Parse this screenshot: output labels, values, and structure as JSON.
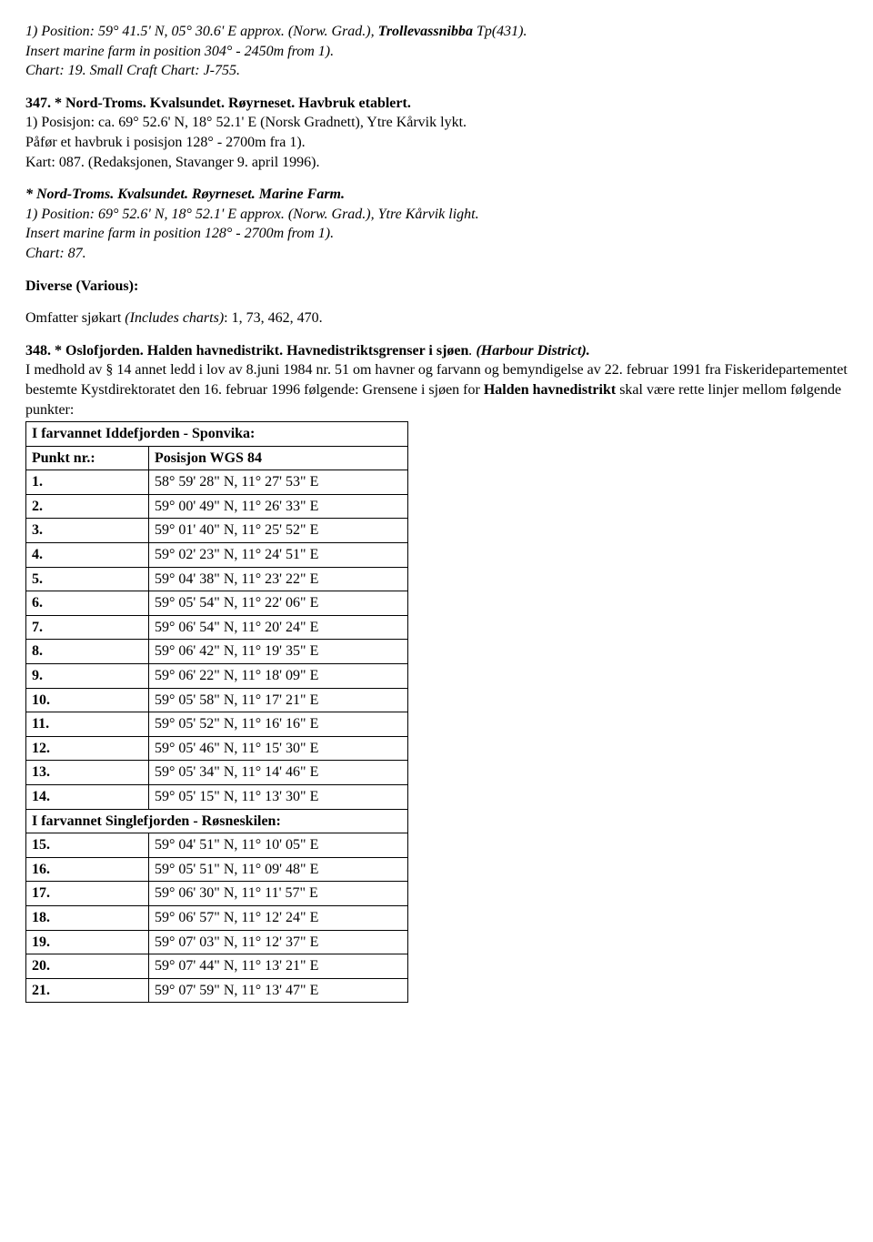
{
  "p1_a": "1) Position: 59° 41.5' N, 05° 30.6' E approx. (Norw. Grad.), ",
  "p1_b": "Trollevassnibba",
  "p1_c": " Tp(431).",
  "p1_d": "Insert marine farm in position 304° - 2450m from 1).",
  "p1_e": "Chart: 19. Small Craft Chart: J-755.",
  "p2_title": "347. * Nord-Troms. Kvalsundet. Røyrneset. Havbruk etablert.",
  "p2_a": "1) Posisjon: ca. 69° 52.6' N, 18° 52.1' E (Norsk Gradnett), Ytre Kårvik lykt.",
  "p2_b": "Påfør et havbruk i posisjon 128° - 2700m fra 1).",
  "p2_c": "Kart: 087. (Redaksjonen, Stavanger 9. april 1996).",
  "p3_title": "* Nord-Troms. Kvalsundet. Røyrneset. Marine Farm.",
  "p3_a": "1) Position: 69° 52.6' N, 18° 52.1' E approx. (Norw. Grad.), Ytre Kårvik light.",
  "p3_b": "Insert marine farm in position 128° - 2700m from 1).",
  "p3_c": "Chart: 87.",
  "diverse_title": "Diverse (Various):",
  "diverse_a": "Omfatter sjøkart ",
  "diverse_b": "(Includes charts)",
  "diverse_c": ": 1, 73, 462, 470.",
  "p4_a": "348. * Oslofjorden. Halden havnedistrikt. Havnedistriktsgrenser i sjøen",
  "p4_b": ". ",
  "p4_c": "(Harbour District).",
  "p4_d": "I medhold av § 14 annet ledd i lov av 8.juni 1984 nr. 51 om havner og farvann og bemyndigelse av 22. februar 1991 fra Fiskeridepartementet bestemte Kystdirektoratet den 16. februar 1996 følgende: Grensene i sjøen for ",
  "p4_e": "Halden havnedistrikt",
  "p4_f": " skal være rette linjer mellom følgende punkter:",
  "table": {
    "section1": "I farvannet Iddefjorden - Sponvika:",
    "header1": "Punkt nr.:",
    "header2": "Posisjon WGS 84",
    "section2": "I farvannet Singlefjorden - Røsneskilen:",
    "rows1": [
      [
        "1.",
        "58° 59' 28\" N, 11° 27' 53\" E"
      ],
      [
        "2.",
        "59° 00' 49\" N, 11° 26' 33\" E"
      ],
      [
        "3.",
        "59° 01' 40\" N, 11° 25' 52\" E"
      ],
      [
        "4.",
        "59° 02' 23\" N, 11° 24' 51\" E"
      ],
      [
        "5.",
        "59° 04' 38\" N, 11° 23' 22\" E"
      ],
      [
        "6.",
        "59° 05' 54\" N, 11° 22' 06\" E"
      ],
      [
        "7.",
        "59° 06' 54\" N, 11° 20' 24\" E"
      ],
      [
        "8.",
        "59° 06' 42\" N, 11° 19' 35\" E"
      ],
      [
        "9.",
        "59° 06' 22\" N, 11° 18' 09\" E"
      ],
      [
        "10.",
        "59° 05' 58\" N, 11° 17' 21\" E"
      ],
      [
        "11.",
        "59° 05' 52\" N, 11° 16' 16\" E"
      ],
      [
        "12.",
        "59° 05' 46\" N, 11° 15' 30\" E"
      ],
      [
        "13.",
        "59° 05' 34\" N, 11° 14' 46\" E"
      ],
      [
        "14.",
        "59° 05' 15\" N, 11° 13' 30\" E"
      ]
    ],
    "rows2": [
      [
        "15.",
        "59° 04' 51\" N, 11° 10' 05\" E"
      ],
      [
        "16.",
        "59° 05' 51\" N, 11° 09' 48\" E"
      ],
      [
        "17.",
        "59° 06' 30\" N, 11° 11' 57\" E"
      ],
      [
        "18.",
        "59° 06' 57\" N, 11° 12' 24\" E"
      ],
      [
        "19.",
        "59° 07' 03\" N, 11° 12' 37\" E"
      ],
      [
        "20.",
        "59° 07' 44\" N, 11° 13' 21\" E"
      ],
      [
        "21.",
        "59° 07' 59\" N, 11° 13' 47\" E"
      ]
    ]
  }
}
